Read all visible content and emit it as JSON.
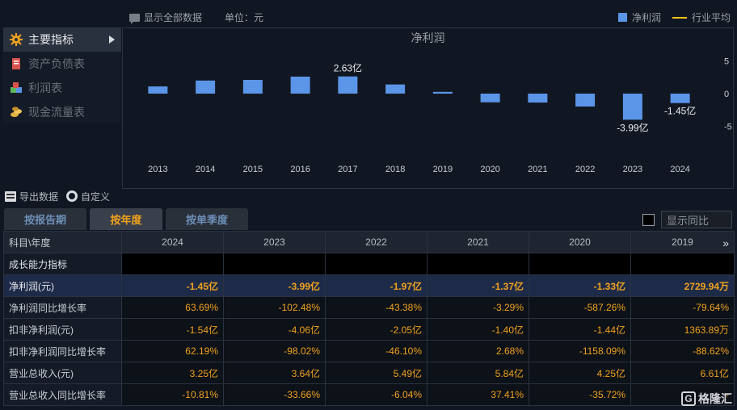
{
  "topbar": {
    "show_all_label": "显示全部数据",
    "unit_label": "单位：元",
    "legend_series": "净利润",
    "legend_avg": "行业平均"
  },
  "sidebar": {
    "items": [
      {
        "label": "主要指标",
        "icon": "gear-orange-icon",
        "active": true
      },
      {
        "label": "资产负债表",
        "icon": "document-red-icon",
        "active": false
      },
      {
        "label": "利润表",
        "icon": "cubes-icon",
        "active": false
      },
      {
        "label": "现金流量表",
        "icon": "coins-icon",
        "active": false
      }
    ]
  },
  "chart_data": {
    "type": "bar",
    "title": "净利润",
    "categories": [
      "2013",
      "2014",
      "2015",
      "2016",
      "2017",
      "2018",
      "2019",
      "2020",
      "2021",
      "2022",
      "2023",
      "2024"
    ],
    "series": [
      {
        "name": "净利润",
        "values": [
          1.1,
          2.0,
          2.1,
          2.6,
          2.63,
          1.4,
          0.27,
          -1.33,
          -1.37,
          -1.97,
          -3.99,
          -1.45
        ]
      }
    ],
    "unit": "亿",
    "y_ticks": [
      5,
      0,
      -5
    ],
    "ylim": [
      -6,
      6
    ],
    "data_labels": [
      {
        "category": "2017",
        "text": "2.63亿"
      },
      {
        "category": "2023",
        "text": "-3.99亿"
      },
      {
        "category": "2024",
        "text": "-1.45亿"
      }
    ],
    "bar_color": "#5b95e8",
    "grid": false,
    "legend_position": "top-right"
  },
  "toolbar": {
    "export_label": "导出数据",
    "custom_label": "自定义"
  },
  "tabs": [
    {
      "label": "按报告期",
      "active": false
    },
    {
      "label": "按年度",
      "active": true
    },
    {
      "label": "按单季度",
      "active": false
    }
  ],
  "yoy_label": "显示同比",
  "table": {
    "header": [
      "科目\\年度",
      "2024",
      "2023",
      "2022",
      "2021",
      "2020",
      "2019"
    ],
    "rows": [
      {
        "label": "成长能力指标",
        "values": [
          "",
          "",
          "",
          "",
          "",
          ""
        ],
        "type": "sect"
      },
      {
        "label": "净利润(元)",
        "values": [
          "-1.45亿",
          "-3.99亿",
          "-1.97亿",
          "-1.37亿",
          "-1.33亿",
          "2729.94万"
        ],
        "type": "hl"
      },
      {
        "label": "净利润同比增长率",
        "values": [
          "63.69%",
          "-102.48%",
          "-43.38%",
          "-3.29%",
          "-587.26%",
          "-79.64%"
        ],
        "type": "row"
      },
      {
        "label": "扣非净利润(元)",
        "values": [
          "-1.54亿",
          "-4.06亿",
          "-2.05亿",
          "-1.40亿",
          "-1.44亿",
          "1363.89万"
        ],
        "type": "row"
      },
      {
        "label": "扣非净利润同比增长率",
        "values": [
          "62.19%",
          "-98.02%",
          "-46.10%",
          "2.68%",
          "-1158.09%",
          "-88.62%"
        ],
        "type": "row"
      },
      {
        "label": "营业总收入(元)",
        "values": [
          "3.25亿",
          "3.64亿",
          "5.49亿",
          "5.84亿",
          "4.25亿",
          "6.61亿"
        ],
        "type": "row"
      },
      {
        "label": "营业总收入同比增长率",
        "values": [
          "-10.81%",
          "-33.66%",
          "-6.04%",
          "37.41%",
          "-35.72%",
          "-"
        ],
        "type": "row"
      }
    ]
  },
  "watermark": "格隆汇"
}
